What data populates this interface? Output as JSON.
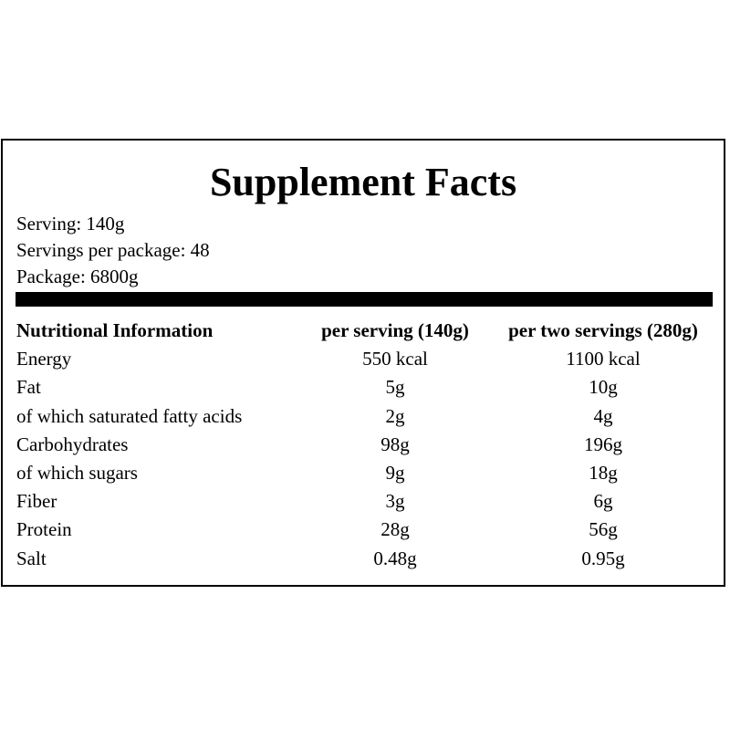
{
  "title": "Supplement Facts",
  "serving_info": [
    "Serving: 140g",
    "Servings per package: 48",
    "Package: 6800g"
  ],
  "table": {
    "headers": [
      "Nutritional Information",
      "per serving (140g)",
      "per two servings (280g)"
    ],
    "rows": [
      {
        "name": "Energy",
        "per_serving": "550 kcal",
        "per_two": "1100 kcal"
      },
      {
        "name": "Fat",
        "per_serving": "5g",
        "per_two": "10g"
      },
      {
        "name": "of which saturated fatty acids",
        "per_serving": "2g",
        "per_two": "4g"
      },
      {
        "name": "Carbohydrates",
        "per_serving": "98g",
        "per_two": "196g"
      },
      {
        "name": "of which sugars",
        "per_serving": "9g",
        "per_two": "18g"
      },
      {
        "name": "Fiber",
        "per_serving": "3g",
        "per_two": "6g"
      },
      {
        "name": "Protein",
        "per_serving": "28g",
        "per_two": "56g"
      },
      {
        "name": "Salt",
        "per_serving": "0.48g",
        "per_two": "0.95g"
      }
    ]
  },
  "colors": {
    "background": "#ffffff",
    "text": "#000000",
    "rule": "#000000"
  }
}
